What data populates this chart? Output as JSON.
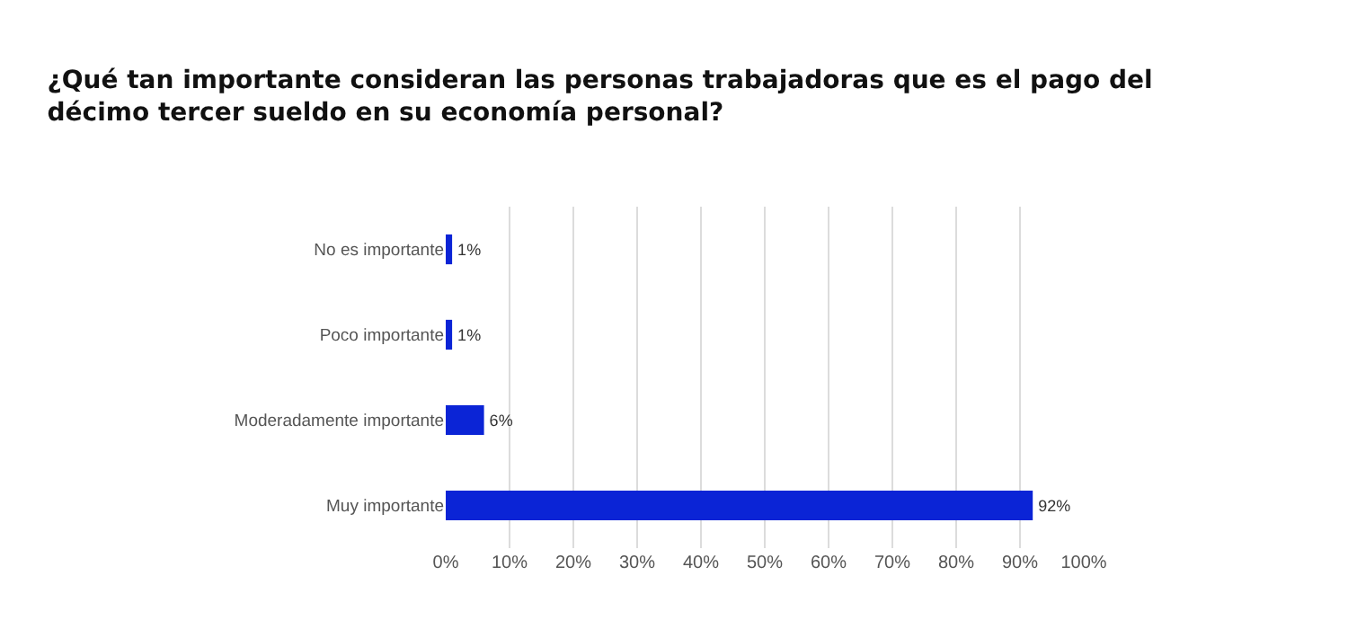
{
  "chart_data": {
    "type": "bar",
    "orientation": "horizontal",
    "title": "¿Qué tan importante consideran las personas trabajadoras que es el pago del décimo tercer sueldo en su economía personal?",
    "categories": [
      "No es importante",
      "Poco importante",
      "Moderadamente importante",
      "Muy importante"
    ],
    "values": [
      1,
      1,
      6,
      92
    ],
    "color": "#0b24d6",
    "xlim": [
      0,
      100
    ],
    "xticks": [
      {
        "value": 0,
        "label": "0%"
      },
      {
        "value": 10,
        "label": "10%"
      },
      {
        "value": 20,
        "label": "20%"
      },
      {
        "value": 30,
        "label": "30%"
      },
      {
        "value": 40,
        "label": "40%"
      },
      {
        "value": 50,
        "label": "50%"
      },
      {
        "value": 60,
        "label": "60%"
      },
      {
        "value": 70,
        "label": "70%"
      },
      {
        "value": 80,
        "label": "80%"
      },
      {
        "value": 90,
        "label": "90%"
      },
      {
        "value": 100,
        "label": "100%"
      }
    ],
    "grid": "x",
    "value_labels": [
      "1%",
      "1%",
      "6%",
      "92%"
    ]
  }
}
